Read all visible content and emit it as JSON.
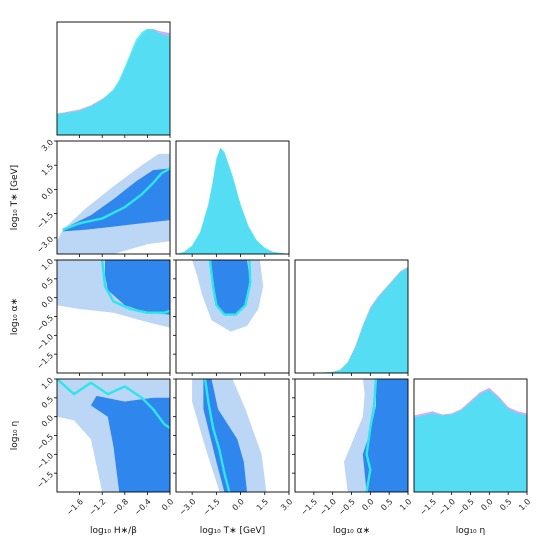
{
  "chart_data": {
    "type": "corner",
    "parameters": [
      {
        "key": "H",
        "label": "log₁₀ H∗/β",
        "range": [
          -2.0,
          0.0
        ],
        "ticks": [
          "−1.6",
          "−1.2",
          "−0.8",
          "−0.4",
          "0.0"
        ],
        "tick_values": [
          -1.6,
          -1.2,
          -0.8,
          -0.4,
          0.0
        ]
      },
      {
        "key": "T",
        "label": "log₁₀ T∗ [GeV]",
        "range": [
          -4.0,
          3.0
        ],
        "ticks": [
          "−3.0",
          "−1.5",
          "0.0",
          "1.5",
          "3.0"
        ],
        "tick_values": [
          -3.0,
          -1.5,
          0.0,
          1.5,
          3.0
        ]
      },
      {
        "key": "alpha",
        "label": "log₁₀ α∗",
        "range": [
          -2.0,
          1.0
        ],
        "ticks": [
          "−1.5",
          "−1.0",
          "−0.5",
          "0.0",
          "0.5",
          "1.0"
        ],
        "tick_values": [
          -1.5,
          -1.0,
          -0.5,
          0.0,
          0.5,
          1.0
        ]
      },
      {
        "key": "eta",
        "label": "log₁₀ η",
        "range": [
          -2.0,
          1.0
        ],
        "ticks": [
          "−1.5",
          "−1.0",
          "−0.5",
          "0.0",
          "0.5",
          "1.0"
        ],
        "tick_values": [
          -1.5,
          -1.0,
          -0.5,
          0.0,
          0.5,
          1.0
        ]
      }
    ],
    "colors": {
      "outer": "#bcd6f6",
      "inner": "#2f86ec",
      "line": "#2ee5ea",
      "hist_a": "#c6a8f0",
      "hist_b": "#40e6f3"
    },
    "marginals": {
      "H": {
        "x": [
          -2.0,
          -1.8,
          -1.6,
          -1.4,
          -1.2,
          -1.0,
          -0.9,
          -0.8,
          -0.7,
          -0.6,
          -0.5,
          -0.4,
          -0.3,
          -0.2,
          -0.1,
          0.0
        ],
        "a": [
          0.2,
          0.22,
          0.24,
          0.28,
          0.34,
          0.42,
          0.5,
          0.62,
          0.74,
          0.86,
          0.94,
          0.99,
          1.0,
          0.98,
          0.97,
          0.96
        ],
        "b": [
          0.2,
          0.21,
          0.23,
          0.27,
          0.33,
          0.43,
          0.52,
          0.64,
          0.77,
          0.9,
          0.97,
          1.0,
          0.99,
          0.96,
          0.94,
          0.93
        ]
      },
      "T": {
        "x": [
          -4.0,
          -3.5,
          -3.0,
          -2.5,
          -2.0,
          -1.75,
          -1.5,
          -1.25,
          -1.0,
          -0.5,
          0.0,
          0.5,
          1.0,
          1.5,
          2.0,
          3.0
        ],
        "a": [
          0.0,
          0.02,
          0.07,
          0.2,
          0.45,
          0.65,
          0.88,
          1.0,
          0.95,
          0.72,
          0.45,
          0.25,
          0.12,
          0.05,
          0.02,
          0.0
        ],
        "b": [
          0.0,
          0.02,
          0.08,
          0.21,
          0.47,
          0.66,
          0.9,
          1.0,
          0.96,
          0.74,
          0.47,
          0.26,
          0.13,
          0.06,
          0.02,
          0.0
        ]
      },
      "alpha": {
        "x": [
          -2.0,
          -1.5,
          -1.0,
          -0.8,
          -0.6,
          -0.4,
          -0.2,
          0.0,
          0.2,
          0.4,
          0.6,
          0.8,
          1.0
        ],
        "a": [
          0.0,
          0.0,
          0.01,
          0.03,
          0.1,
          0.25,
          0.45,
          0.62,
          0.72,
          0.8,
          0.88,
          0.96,
          1.0
        ],
        "b": [
          0.0,
          0.0,
          0.01,
          0.03,
          0.1,
          0.24,
          0.44,
          0.6,
          0.71,
          0.79,
          0.87,
          0.95,
          0.99
        ]
      },
      "eta": {
        "x": [
          -2.0,
          -1.75,
          -1.5,
          -1.25,
          -1.0,
          -0.75,
          -0.5,
          -0.25,
          0.0,
          0.25,
          0.5,
          0.75,
          1.0
        ],
        "a": [
          0.72,
          0.74,
          0.76,
          0.73,
          0.74,
          0.78,
          0.86,
          0.94,
          0.98,
          0.9,
          0.8,
          0.76,
          0.74
        ],
        "b": [
          0.7,
          0.72,
          0.74,
          0.72,
          0.73,
          0.77,
          0.84,
          0.92,
          0.96,
          0.88,
          0.78,
          0.74,
          0.72
        ]
      }
    },
    "pairs": [
      {
        "x": "H",
        "y": "T",
        "outer": [
          [
            -2.0,
            -3.2
          ],
          [
            -2.0,
            -4.0
          ],
          [
            -1.0,
            -4.0
          ],
          [
            -0.4,
            -3.4
          ],
          [
            0.0,
            -3.2
          ],
          [
            0.0,
            2.2
          ],
          [
            -0.2,
            2.2
          ],
          [
            -0.5,
            1.5
          ],
          [
            -1.0,
            0.2
          ],
          [
            -1.5,
            -1.2
          ],
          [
            -1.9,
            -2.5
          ]
        ],
        "inner": [
          [
            -1.9,
            -2.6
          ],
          [
            -1.5,
            -2.5
          ],
          [
            -1.0,
            -2.3
          ],
          [
            -0.5,
            -2.1
          ],
          [
            0.0,
            -1.9
          ],
          [
            0.0,
            1.3
          ],
          [
            -0.3,
            1.2
          ],
          [
            -0.6,
            0.5
          ],
          [
            -1.0,
            -0.6
          ],
          [
            -1.4,
            -1.6
          ],
          [
            -1.75,
            -2.2
          ]
        ],
        "line": [
          [
            -1.9,
            -2.5
          ],
          [
            -1.6,
            -2.1
          ],
          [
            -1.2,
            -1.8
          ],
          [
            -0.8,
            -1.1
          ],
          [
            -0.5,
            -0.3
          ],
          [
            -0.3,
            0.4
          ],
          [
            -0.15,
            1.0
          ],
          [
            0.0,
            1.3
          ]
        ]
      },
      {
        "x": "H",
        "y": "alpha",
        "outer": [
          [
            -2.0,
            1.0
          ],
          [
            0.0,
            1.0
          ],
          [
            0.0,
            -0.8
          ],
          [
            -0.4,
            -0.65
          ],
          [
            -1.0,
            -0.4
          ],
          [
            -1.6,
            -0.3
          ],
          [
            -2.0,
            -0.2
          ]
        ],
        "inner": [
          [
            -1.15,
            1.0
          ],
          [
            0.0,
            1.0
          ],
          [
            0.0,
            -0.45
          ],
          [
            -0.4,
            -0.4
          ],
          [
            -0.8,
            -0.2
          ],
          [
            -1.1,
            0.2
          ],
          [
            -1.15,
            0.6
          ]
        ],
        "line": [
          [
            -1.2,
            1.0
          ],
          [
            -1.15,
            0.3
          ],
          [
            -1.0,
            -0.1
          ],
          [
            -0.7,
            -0.3
          ],
          [
            -0.4,
            -0.4
          ],
          [
            -0.1,
            -0.4
          ],
          [
            0.0,
            -0.35
          ]
        ]
      },
      {
        "x": "T",
        "y": "alpha",
        "outer": [
          [
            -3.0,
            1.0
          ],
          [
            1.2,
            1.0
          ],
          [
            1.4,
            0.3
          ],
          [
            1.1,
            -0.3
          ],
          [
            0.4,
            -0.75
          ],
          [
            -0.6,
            -0.9
          ],
          [
            -1.8,
            -0.6
          ],
          [
            -2.4,
            0.1
          ],
          [
            -2.7,
            0.6
          ]
        ],
        "inner": [
          [
            -1.8,
            1.0
          ],
          [
            0.4,
            1.0
          ],
          [
            0.6,
            0.4
          ],
          [
            0.3,
            -0.2
          ],
          [
            -0.3,
            -0.45
          ],
          [
            -1.0,
            -0.45
          ],
          [
            -1.6,
            -0.1
          ],
          [
            -1.8,
            0.4
          ]
        ],
        "line": [
          [
            -1.9,
            1.0
          ],
          [
            -1.7,
            0.3
          ],
          [
            -1.5,
            -0.2
          ],
          [
            -1.0,
            -0.45
          ],
          [
            -0.3,
            -0.45
          ],
          [
            0.3,
            -0.2
          ],
          [
            0.6,
            0.4
          ],
          [
            0.55,
            1.0
          ]
        ]
      },
      {
        "x": "H",
        "y": "eta",
        "outer": [
          [
            -2.0,
            1.0
          ],
          [
            0.0,
            1.0
          ],
          [
            0.0,
            -2.0
          ],
          [
            -1.2,
            -2.0
          ],
          [
            -1.4,
            -0.6
          ],
          [
            -1.7,
            -0.1
          ],
          [
            -2.0,
            0.0
          ]
        ],
        "inner": [
          [
            -1.3,
            0.55
          ],
          [
            -0.8,
            0.4
          ],
          [
            -0.3,
            0.5
          ],
          [
            0.0,
            0.5
          ],
          [
            0.0,
            -2.0
          ],
          [
            -0.9,
            -2.0
          ],
          [
            -1.0,
            -0.8
          ],
          [
            -1.1,
            0.0
          ],
          [
            -1.4,
            0.3
          ]
        ],
        "line": [
          [
            -2.0,
            1.0
          ],
          [
            -1.7,
            0.6
          ],
          [
            -1.4,
            0.9
          ],
          [
            -1.1,
            0.6
          ],
          [
            -0.8,
            0.8
          ],
          [
            -0.5,
            0.5
          ],
          [
            -0.3,
            0.2
          ],
          [
            -0.1,
            -0.2
          ],
          [
            0.0,
            -0.3
          ]
        ]
      },
      {
        "x": "T",
        "y": "eta",
        "outer": [
          [
            -3.0,
            1.0
          ],
          [
            -0.5,
            1.0
          ],
          [
            0.3,
            0.2
          ],
          [
            1.3,
            -1.0
          ],
          [
            1.6,
            -2.0
          ],
          [
            -1.3,
            -2.0
          ],
          [
            -2.2,
            -0.8
          ],
          [
            -3.0,
            0.4
          ]
        ],
        "inner": [
          [
            -2.3,
            1.0
          ],
          [
            -1.8,
            1.0
          ],
          [
            -1.4,
            0.2
          ],
          [
            -0.2,
            -0.6
          ],
          [
            0.2,
            -1.2
          ],
          [
            0.4,
            -2.0
          ],
          [
            -1.0,
            -2.0
          ],
          [
            -1.5,
            -1.2
          ],
          [
            -2.3,
            0.2
          ]
        ],
        "line": [
          [
            -2.2,
            1.0
          ],
          [
            -2.0,
            0.4
          ],
          [
            -1.7,
            -0.3
          ],
          [
            -1.3,
            -0.9
          ],
          [
            -1.0,
            -1.5
          ],
          [
            -0.7,
            -2.0
          ]
        ]
      },
      {
        "x": "alpha",
        "y": "eta",
        "outer": [
          [
            -0.2,
            1.0
          ],
          [
            1.0,
            1.0
          ],
          [
            1.0,
            -2.0
          ],
          [
            -0.6,
            -2.0
          ],
          [
            -0.7,
            -1.2
          ],
          [
            -0.45,
            -0.6
          ],
          [
            -0.2,
            0.0
          ],
          [
            -0.15,
            0.6
          ]
        ],
        "inner": [
          [
            0.15,
            1.0
          ],
          [
            1.0,
            1.0
          ],
          [
            1.0,
            -2.0
          ],
          [
            -0.1,
            -2.0
          ],
          [
            -0.2,
            -1.0
          ],
          [
            0.0,
            -0.4
          ],
          [
            0.15,
            0.3
          ]
        ],
        "line": [
          [
            0.15,
            1.0
          ],
          [
            0.1,
            0.3
          ],
          [
            0.0,
            -0.3
          ],
          [
            -0.1,
            -1.0
          ],
          [
            0.0,
            -1.4
          ],
          [
            -0.1,
            -2.0
          ]
        ]
      }
    ]
  }
}
